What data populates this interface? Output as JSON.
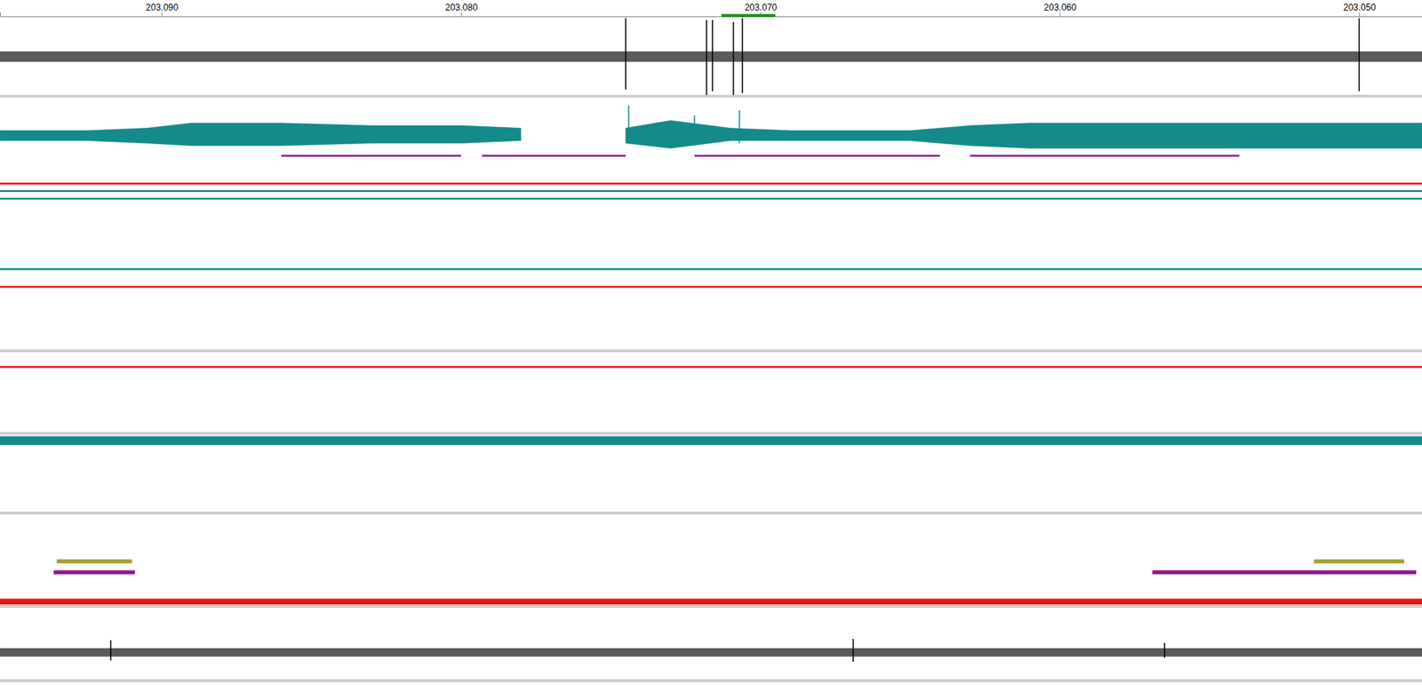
{
  "chart_data": {
    "type": "track",
    "xlim": [
      203.0954,
      203.0479
    ],
    "xticks": [
      {
        "value": 203.09,
        "label": "203.090"
      },
      {
        "value": 203.08,
        "label": "203.080"
      },
      {
        "value": 203.07,
        "label": "203.070"
      },
      {
        "value": 203.06,
        "label": "203.060"
      },
      {
        "value": 203.05,
        "label": "203.050"
      }
    ],
    "highlight": {
      "x": [
        203.0713,
        203.0695
      ],
      "color": "#1a8f1a"
    },
    "tracks": [
      {
        "ylim": [
          -1,
          1
        ],
        "series": [
          {
            "type": "area",
            "color": "#5a5a5a",
            "x": [
              203.0954,
              203.0479
            ],
            "values": [
              0.13,
              0.13
            ],
            "low": [
              -0.13,
              -0.13
            ]
          },
          {
            "type": "spikes",
            "color": "#000000",
            "x": [
              203.0745,
              203.0718,
              203.0716,
              203.0709,
              203.0706,
              203.05
            ],
            "values": [
              1.0,
              0.95,
              0.95,
              0.9,
              1.0,
              1.0
            ],
            "low": [
              -0.85,
              -1.0,
              -0.9,
              -1.0,
              -0.95,
              -0.9
            ]
          }
        ]
      },
      {
        "ylim": [
          0,
          1
        ],
        "series": [
          {
            "type": "area",
            "color": "#148a8a",
            "x": [
              203.0954,
              203.0925,
              203.0905,
              203.089,
              203.086,
              203.083,
              203.08,
              203.078,
              203.0765,
              203.0745,
              203.073,
              203.071,
              203.069,
              203.067,
              203.065,
              203.063,
              203.061,
              203.059,
              203.057,
              203.055,
              203.053,
              203.051,
              203.049,
              203.0479
            ],
            "values": [
              0.87,
              0.87,
              0.88,
              0.9,
              0.9,
              0.89,
              0.89,
              0.88,
              null,
              0.88,
              0.91,
              0.88,
              0.87,
              0.87,
              0.87,
              0.89,
              0.9,
              0.9,
              0.9,
              0.9,
              0.9,
              0.9,
              0.9,
              0.9
            ],
            "low": [
              0.83,
              0.83,
              0.82,
              0.81,
              0.81,
              0.82,
              0.82,
              0.83,
              null,
              0.82,
              0.8,
              0.83,
              0.83,
              0.83,
              0.83,
              0.81,
              0.8,
              0.8,
              0.8,
              0.8,
              0.8,
              0.8,
              0.8,
              0.8
            ]
          },
          {
            "type": "spikes",
            "color": "#148a8a",
            "x": [
              203.0744,
              203.0722,
              203.0707
            ],
            "values": [
              0.97,
              0.93,
              0.95
            ],
            "low": [
              0.82,
              0.82,
              0.82
            ]
          },
          {
            "type": "line",
            "color": "#8b1a8b",
            "x": [
              203.086,
              203.08,
              203.0797,
              203.0793,
              203.0745,
              203.0735,
              203.0722,
              203.064,
              203.0635,
              203.063,
              203.054
            ],
            "values": [
              0.77,
              0.77,
              null,
              0.77,
              0.77,
              null,
              0.77,
              0.77,
              null,
              0.77,
              0.77
            ]
          },
          {
            "type": "line",
            "color": "#ee1111",
            "x": [
              203.0954,
              203.0479
            ],
            "values": [
              0.66,
              0.66
            ]
          },
          {
            "type": "line",
            "color": "#148a8a",
            "x": [
              203.0954,
              203.0479
            ],
            "values": [
              0.63,
              0.63
            ]
          },
          {
            "type": "line",
            "color": "#148a8a",
            "x": [
              203.0954,
              203.0479
            ],
            "values": [
              0.6,
              0.6
            ]
          },
          {
            "type": "line",
            "color": "#148a8a",
            "x": [
              203.0954,
              203.0479
            ],
            "values": [
              0.32,
              0.32
            ]
          },
          {
            "type": "line",
            "color": "#ee1111",
            "x": [
              203.0954,
              203.0479
            ],
            "values": [
              0.25,
              0.25
            ]
          }
        ]
      },
      {
        "ylim": [
          0,
          1
        ],
        "series": [
          {
            "type": "line",
            "color": "#ee1111",
            "x": [
              203.0954,
              203.0479
            ],
            "values": [
              0.81,
              0.81
            ]
          }
        ]
      },
      {
        "ylim": [
          0,
          1
        ],
        "series": [
          {
            "type": "area",
            "color": "#148a8a",
            "x": [
              203.0954,
              203.0479
            ],
            "values": [
              0.97,
              0.97
            ],
            "low": [
              0.86,
              0.86
            ]
          }
        ]
      },
      {
        "ylim": [
          0,
          1
        ],
        "series": [
          {
            "type": "area",
            "color": "#8b1a8b",
            "x": [
              203.0936,
              203.0909
            ],
            "values": [
              0.38,
              0.38
            ],
            "low": [
              0.34,
              0.34
            ]
          },
          {
            "type": "area",
            "color": "#a8a030",
            "x": [
              203.0935,
              203.091
            ],
            "values": [
              0.5,
              0.5
            ],
            "low": [
              0.46,
              0.46
            ]
          },
          {
            "type": "area",
            "color": "#8b1a8b",
            "x": [
              203.0569,
              203.0481
            ],
            "values": [
              0.38,
              0.38
            ],
            "low": [
              0.34,
              0.34
            ]
          },
          {
            "type": "area",
            "color": "#a8a030",
            "x": [
              203.0515,
              203.0485
            ],
            "values": [
              0.5,
              0.5
            ],
            "low": [
              0.46,
              0.46
            ]
          },
          {
            "type": "area",
            "color": "#ee1111",
            "x": [
              203.0954,
              203.0479
            ],
            "values": [
              0.07,
              0.07
            ],
            "low": [
              0.01,
              0.01
            ]
          }
        ]
      },
      {
        "ylim": [
          -1,
          1
        ],
        "series": [
          {
            "type": "area",
            "color": "#5a5a5a",
            "x": [
              203.0954,
              203.0479
            ],
            "values": [
              0.15,
              0.15
            ],
            "low": [
              -0.15,
              -0.15
            ]
          },
          {
            "type": "spikes",
            "color": "#000000",
            "x": [
              203.0917,
              203.0669,
              203.0565
            ],
            "values": [
              0.45,
              0.5,
              0.35
            ],
            "low": [
              -0.3,
              -0.35,
              -0.2
            ]
          }
        ]
      }
    ]
  }
}
